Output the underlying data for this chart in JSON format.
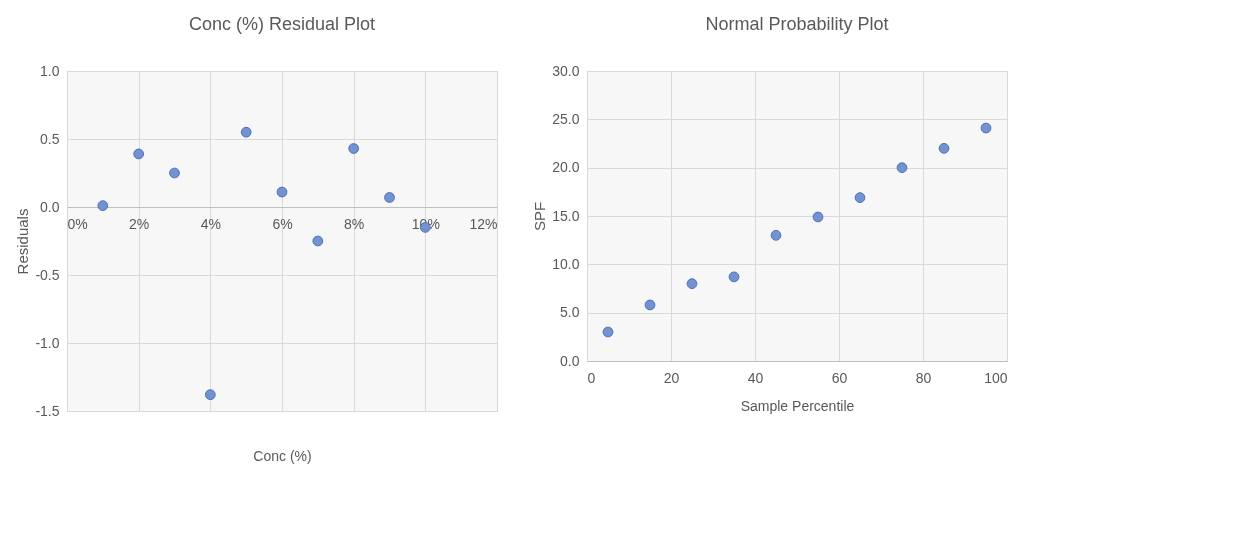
{
  "chart_data": [
    {
      "type": "scatter",
      "title": "Conc (%)  Residual Plot",
      "xlabel": "Conc (%)",
      "ylabel": "Residuals",
      "x": [
        1,
        2,
        3,
        4,
        5,
        6,
        7,
        8,
        9,
        10
      ],
      "series": [
        {
          "color": "#7393d0",
          "values": [
            0.01,
            0.39,
            0.25,
            -1.38,
            0.55,
            0.11,
            -0.25,
            0.43,
            0.07,
            -0.15
          ]
        }
      ],
      "xlim": [
        0,
        12
      ],
      "xticks": [
        {
          "value": 0,
          "label": "0%"
        },
        {
          "value": 2,
          "label": "2%"
        },
        {
          "value": 4,
          "label": "4%"
        },
        {
          "value": 6,
          "label": "6%"
        },
        {
          "value": 8,
          "label": "8%"
        },
        {
          "value": 10,
          "label": "10%"
        },
        {
          "value": 12,
          "label": "12%"
        }
      ],
      "ylim": [
        -1.5,
        1.0
      ],
      "yticks": [
        {
          "value": -1.5,
          "label": "-1.5"
        },
        {
          "value": -1.0,
          "label": "-1.0"
        },
        {
          "value": -0.5,
          "label": "-0.5"
        },
        {
          "value": 0,
          "label": "0.0"
        },
        {
          "value": 0.5,
          "label": "0.5"
        },
        {
          "value": 1.0,
          "label": "1.0"
        }
      ],
      "grid": true,
      "marker": "circle"
    },
    {
      "type": "scatter",
      "title": "Normal Probability Plot",
      "xlabel": "Sample Percentile",
      "ylabel": "SPF",
      "x": [
        5,
        15,
        25,
        35,
        45,
        55,
        65,
        75,
        85,
        95
      ],
      "series": [
        {
          "color": "#7393d0",
          "values": [
            3.0,
            5.8,
            8.0,
            8.7,
            13.0,
            14.9,
            16.9,
            20.0,
            22.0,
            24.1
          ]
        }
      ],
      "xlim": [
        0,
        100
      ],
      "xticks": [
        0,
        20,
        40,
        60,
        80,
        100
      ],
      "ylim": [
        0,
        30
      ],
      "yticks": [
        {
          "value": 0,
          "label": "0.0"
        },
        {
          "value": 5,
          "label": "5.0"
        },
        {
          "value": 10,
          "label": "10.0"
        },
        {
          "value": 15,
          "label": "15.0"
        },
        {
          "value": 20,
          "label": "20.0"
        },
        {
          "value": 25,
          "label": "25.0"
        },
        {
          "value": 30,
          "label": "30.0"
        }
      ],
      "grid": true,
      "marker": "circle"
    }
  ]
}
